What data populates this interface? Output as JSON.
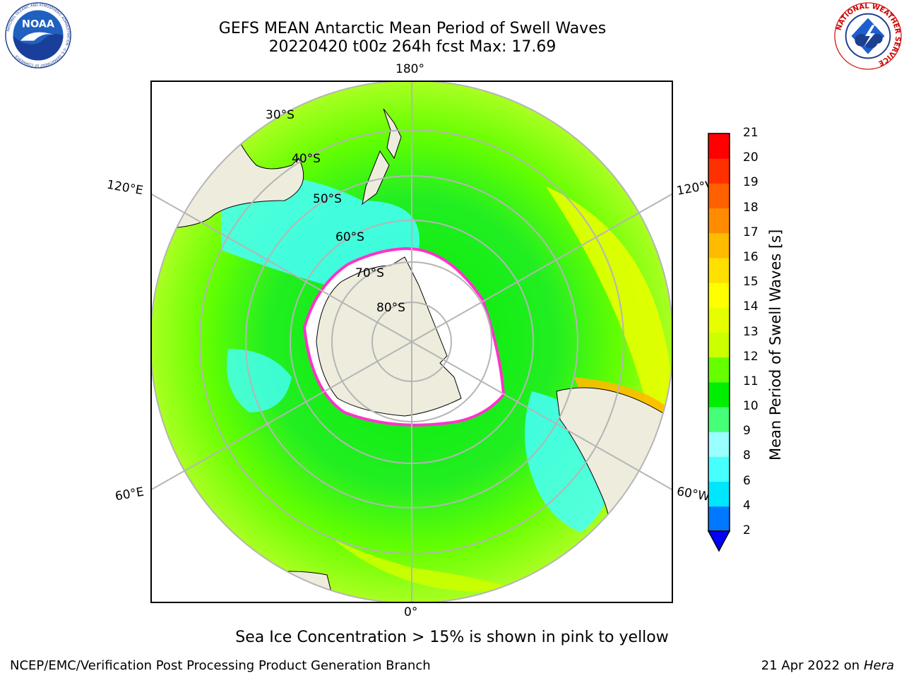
{
  "header": {
    "title_line1": "GEFS MEAN Antarctic Mean Period of Swell Waves",
    "title_line2": "20220420 t00z 264h fcst   Max: 17.69"
  },
  "logos": {
    "left": "NOAA",
    "left_ring_text": "NATIONAL OCEANIC AND ATMOSPHERIC ADMINISTRATION · U.S. DEPARTMENT OF COMMERCE",
    "right_ring_text": "NATIONAL WEATHER SERVICE"
  },
  "map": {
    "projection": "south polar stereographic",
    "longitude_labels": {
      "top": "180°",
      "bottom": "0°",
      "left_upper": "120°E",
      "left_lower": "60°E",
      "right_upper": "120°W",
      "right_lower": "60°W"
    },
    "latitude_labels": [
      "30°S",
      "40°S",
      "50°S",
      "60°S",
      "70°S",
      "80°S"
    ],
    "colors": {
      "land": "#eeecdc",
      "ice": "#ffffff",
      "ice_edge": "#ff33cc",
      "gridline": "#b5b5b5",
      "coastline": "#000000"
    }
  },
  "colorbar": {
    "label": "Mean Period of Swell Waves [s]",
    "ticks": [
      "2",
      "4",
      "6",
      "8",
      "9",
      "10",
      "11",
      "12",
      "13",
      "14",
      "15",
      "16",
      "17",
      "18",
      "19",
      "20",
      "21"
    ],
    "colors": [
      "#0000ff",
      "#0078ff",
      "#00e6ff",
      "#46ffff",
      "#99ffff",
      "#46ff78",
      "#00ee00",
      "#66ff00",
      "#ccff00",
      "#e6ff00",
      "#ffff00",
      "#ffe000",
      "#ffbb00",
      "#ff8c00",
      "#ff6000",
      "#ff3000",
      "#ff0000"
    ],
    "extend": "min"
  },
  "notes": {
    "sea_ice": "Sea Ice Concentration > 15% is shown in pink to yellow"
  },
  "footer": {
    "left": "NCEP/EMC/Verification Post Processing Product Generation Branch",
    "right_date": "21 Apr 2022 on ",
    "right_host": "Hera"
  }
}
